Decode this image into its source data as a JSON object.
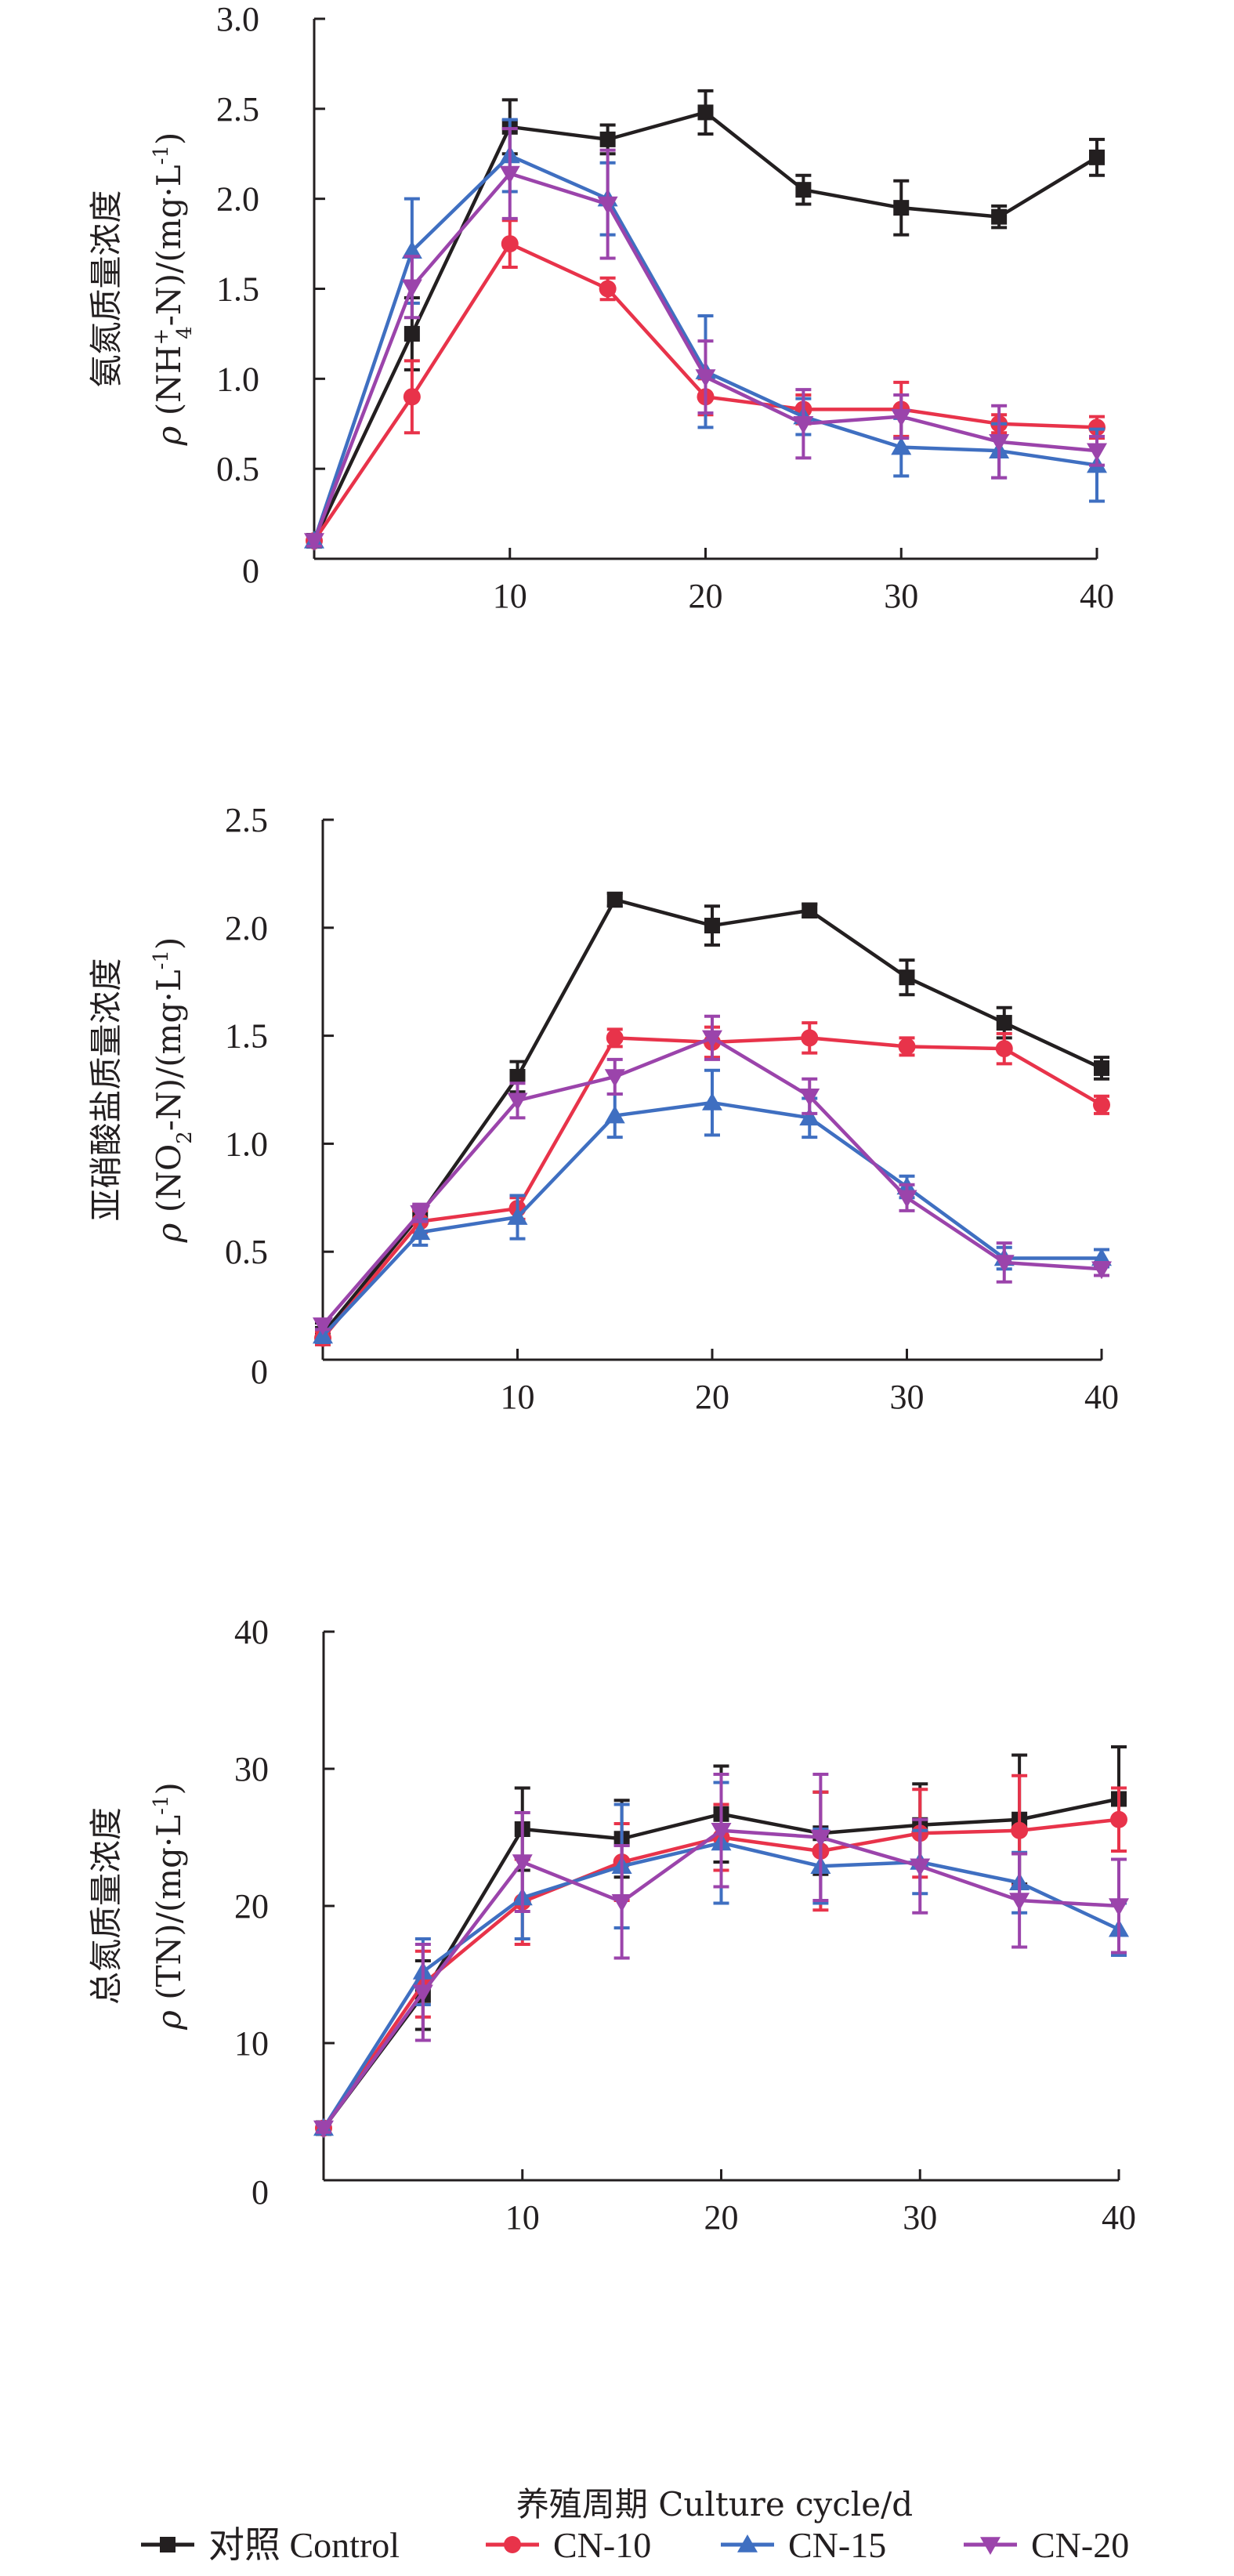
{
  "chart_data": [
    {
      "type": "line",
      "id": "ammonia",
      "title": "",
      "ylabel_cn": "氨氮质量浓度",
      "ylabel": "ρ (NH4+-N)/(mg·L−1)",
      "ylabel_parts": {
        "rho": "ρ",
        "pre": " (NH",
        "sub": "4",
        "sup": "+",
        "post": "-N)/(mg·L",
        "unit_sup": "-1",
        "close": ")"
      },
      "xlabel": "",
      "ylim": [
        0,
        3.0
      ],
      "yticks": [
        0,
        0.5,
        1.0,
        1.5,
        2.0,
        2.5,
        3.0
      ],
      "ytick_labels": [
        "0",
        "0.5",
        "1.0",
        "1.5",
        "2.0",
        "2.5",
        "3.0"
      ],
      "xlim": [
        0,
        40
      ],
      "xticks": [
        10,
        20,
        30,
        40
      ],
      "xtick_labels": [
        "10",
        "20",
        "30",
        "40"
      ],
      "x": [
        0,
        5,
        10,
        15,
        20,
        25,
        30,
        35,
        40
      ],
      "series": [
        {
          "name": "对照 Control",
          "values": [
            0.1,
            1.25,
            2.4,
            2.33,
            2.48,
            2.05,
            1.95,
            1.9,
            2.23
          ],
          "errors": [
            0.03,
            0.2,
            0.15,
            0.08,
            0.12,
            0.08,
            0.15,
            0.06,
            0.1
          ]
        },
        {
          "name": "CN-10",
          "values": [
            0.1,
            0.9,
            1.75,
            1.5,
            0.9,
            0.83,
            0.83,
            0.75,
            0.73
          ],
          "errors": [
            0.03,
            0.2,
            0.13,
            0.06,
            0.1,
            0.08,
            0.15,
            0.05,
            0.06
          ]
        },
        {
          "name": "CN-15",
          "values": [
            0.1,
            1.71,
            2.24,
            2.0,
            1.04,
            0.79,
            0.62,
            0.6,
            0.52
          ],
          "errors": [
            0.03,
            0.29,
            0.2,
            0.2,
            0.31,
            0.1,
            0.16,
            0.15,
            0.2
          ]
        },
        {
          "name": "CN-20",
          "values": [
            0.1,
            1.51,
            2.14,
            1.97,
            1.01,
            0.75,
            0.79,
            0.65,
            0.6
          ],
          "errors": [
            0.03,
            0.17,
            0.25,
            0.3,
            0.2,
            0.19,
            0.12,
            0.2,
            0.08
          ]
        }
      ]
    },
    {
      "type": "line",
      "id": "nitrite",
      "title": "",
      "ylabel_cn": "亚硝酸盐质量浓度",
      "ylabel": "ρ (NO2-N)/(mg·L−1)",
      "ylabel_parts": {
        "rho": "ρ",
        "pre": " (NO",
        "sub": "2",
        "sup": "",
        "post": "-N)/(mg·L",
        "unit_sup": "-1",
        "close": ")"
      },
      "xlabel": "",
      "ylim": [
        0,
        2.5
      ],
      "yticks": [
        0,
        0.5,
        1.0,
        1.5,
        2.0,
        2.5
      ],
      "ytick_labels": [
        "0",
        "0.5",
        "1.0",
        "1.5",
        "2.0",
        "2.5"
      ],
      "xlim": [
        0,
        40
      ],
      "xticks": [
        10,
        20,
        30,
        40
      ],
      "xtick_labels": [
        "10",
        "20",
        "30",
        "40"
      ],
      "x": [
        0,
        5,
        10,
        15,
        20,
        25,
        30,
        35,
        40
      ],
      "series": [
        {
          "name": "对照 Control",
          "values": [
            0.12,
            0.67,
            1.31,
            2.13,
            2.01,
            2.08,
            1.77,
            1.56,
            1.35
          ],
          "errors": [
            0.05,
            0.04,
            0.07,
            0.03,
            0.09,
            0.03,
            0.08,
            0.07,
            0.05
          ]
        },
        {
          "name": "CN-10",
          "values": [
            0.1,
            0.64,
            0.7,
            1.49,
            1.47,
            1.49,
            1.45,
            1.44,
            1.18
          ],
          "errors": [
            0.03,
            0.05,
            0.05,
            0.04,
            0.07,
            0.07,
            0.04,
            0.07,
            0.04
          ]
        },
        {
          "name": "CN-15",
          "values": [
            0.11,
            0.59,
            0.66,
            1.13,
            1.19,
            1.12,
            0.8,
            0.47,
            0.47
          ],
          "errors": [
            0.03,
            0.06,
            0.1,
            0.1,
            0.15,
            0.09,
            0.05,
            0.05,
            0.04
          ]
        },
        {
          "name": "CN-20",
          "values": [
            0.16,
            0.68,
            1.2,
            1.31,
            1.49,
            1.22,
            0.75,
            0.45,
            0.42
          ],
          "errors": [
            0.02,
            0.04,
            0.08,
            0.08,
            0.1,
            0.08,
            0.06,
            0.09,
            0.03
          ]
        }
      ]
    },
    {
      "type": "line",
      "id": "total-nitrogen",
      "title": "",
      "ylabel_cn": "总氮质量浓度",
      "ylabel": "ρ (TN)/(mg·L−1)",
      "ylabel_parts": {
        "rho": "ρ",
        "pre": " (TN",
        "sub": "",
        "sup": "",
        "post": ")/(mg·L",
        "unit_sup": "-1",
        "close": ")"
      },
      "xlabel": "养殖周期 Culture cycle/d",
      "ylim": [
        0,
        40
      ],
      "yticks": [
        0,
        10,
        20,
        30,
        40
      ],
      "ytick_labels": [
        "0",
        "10",
        "20",
        "30",
        "40"
      ],
      "xlim": [
        0,
        40
      ],
      "xticks": [
        10,
        20,
        30,
        40
      ],
      "xtick_labels": [
        "10",
        "20",
        "30",
        "40"
      ],
      "x": [
        0,
        5,
        10,
        15,
        20,
        25,
        30,
        35,
        40
      ],
      "series": [
        {
          "name": "对照 Control",
          "values": [
            3.8,
            13.5,
            25.6,
            24.9,
            26.7,
            25.3,
            25.9,
            26.3,
            27.8
          ],
          "errors": [
            0.3,
            2.5,
            3.0,
            2.8,
            3.5,
            3.0,
            3.0,
            4.7,
            3.8
          ]
        },
        {
          "name": "CN-10",
          "values": [
            3.8,
            14.3,
            20.3,
            23.2,
            25.0,
            24.0,
            25.3,
            25.5,
            26.3
          ],
          "errors": [
            0.3,
            2.4,
            3.1,
            2.8,
            2.4,
            4.3,
            3.2,
            4.0,
            2.3
          ]
        },
        {
          "name": "CN-15",
          "values": [
            3.8,
            15.2,
            20.6,
            22.9,
            24.6,
            22.9,
            23.2,
            21.7,
            18.3
          ],
          "errors": [
            0.3,
            2.4,
            3.0,
            4.5,
            4.4,
            2.7,
            2.3,
            2.2,
            1.9
          ]
        },
        {
          "name": "CN-20",
          "values": [
            3.8,
            13.7,
            23.2,
            20.3,
            25.5,
            25.0,
            22.9,
            20.4,
            20.0
          ],
          "errors": [
            0.3,
            3.5,
            3.6,
            4.1,
            4.1,
            4.6,
            3.4,
            3.4,
            3.4
          ]
        }
      ]
    }
  ],
  "legend": {
    "position": "bottom",
    "items": [
      {
        "label": "对照 Control",
        "color": "#231f20",
        "marker": "square"
      },
      {
        "label": "CN-10",
        "color": "#e8334a",
        "marker": "circle"
      },
      {
        "label": "CN-15",
        "color": "#3f6fc1",
        "marker": "triangle-up"
      },
      {
        "label": "CN-20",
        "color": "#9b44ab",
        "marker": "triangle-down"
      }
    ]
  }
}
